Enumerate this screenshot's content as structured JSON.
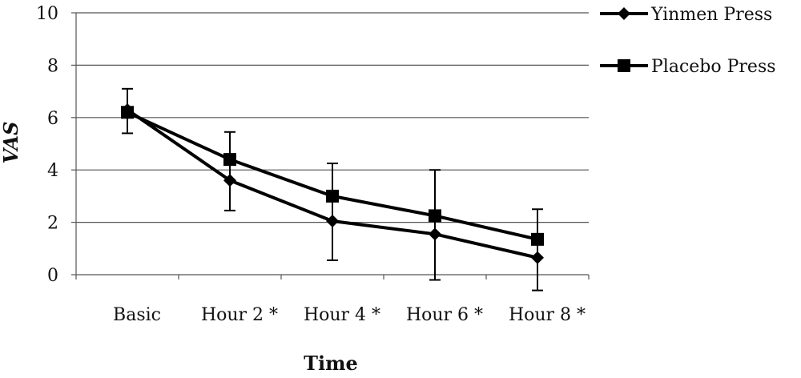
{
  "chart_data": {
    "type": "line",
    "xlabel": "Time",
    "ylabel": "VAS",
    "ylim": [
      0,
      10
    ],
    "yticks": [
      0,
      2,
      4,
      6,
      8,
      10
    ],
    "grid": "horizontal",
    "legend_position": "right",
    "categories": [
      "Basic",
      "Hour 2 *",
      "Hour 4 *",
      "Hour 6 *",
      "Hour 8 *"
    ],
    "series": [
      {
        "name": "Yinmen Press",
        "marker": "diamond",
        "color": "#000000",
        "values": [
          6.3,
          3.6,
          2.05,
          1.55,
          0.65
        ],
        "err_low": [
          5.4,
          2.45,
          0.55,
          -0.2,
          -0.6
        ],
        "err_high": [
          7.1,
          5.45,
          4.25,
          4.0,
          2.5
        ]
      },
      {
        "name": "Placebo Press",
        "marker": "square",
        "color": "#000000",
        "values": [
          6.2,
          4.4,
          3.0,
          2.25,
          1.35
        ],
        "err_low": [
          null,
          null,
          null,
          null,
          null
        ],
        "err_high": [
          null,
          null,
          null,
          null,
          null
        ]
      }
    ]
  }
}
